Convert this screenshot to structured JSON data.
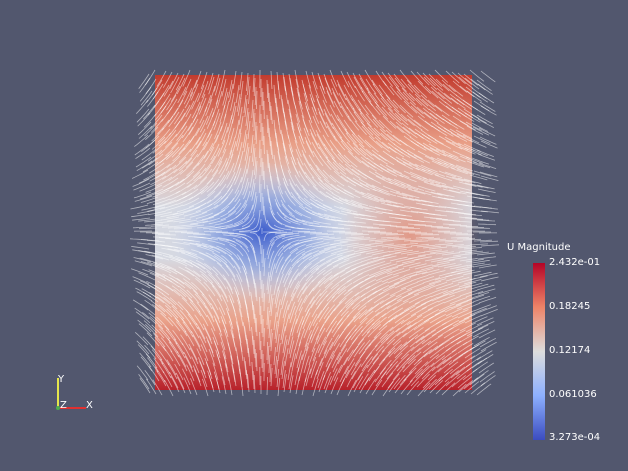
{
  "colorbar": {
    "title": "U Magnitude",
    "labels": [
      "2.432e-01",
      "0.18245",
      "0.12174",
      "0.061036",
      "3.273e-04"
    ]
  },
  "axes": {
    "y": "Y",
    "z": "Z",
    "x": "X"
  }
}
